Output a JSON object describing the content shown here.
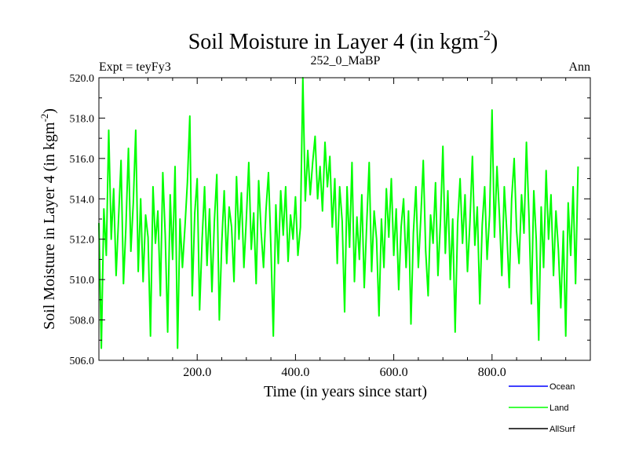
{
  "chart_data": {
    "type": "line",
    "title": "Soil Moisture in Layer 4 (in kgm",
    "title_sup": "-2",
    "title_close": ")",
    "header": {
      "left": "Expt = teyFy3",
      "center": "252_0_MaBP",
      "right": "Ann"
    },
    "ylabel": "Soil Moisture in Layer 4 (in kgm",
    "ylabel_sup": "-2",
    "ylabel_close": ")",
    "xlabel": "Time (in years since start)",
    "xlim": [
      0,
      1000
    ],
    "ylim": [
      506.0,
      520.0
    ],
    "xticks": [
      {
        "value": 200,
        "label": "200.0"
      },
      {
        "value": 400,
        "label": "400.0"
      },
      {
        "value": 600,
        "label": "600.0"
      },
      {
        "value": 800,
        "label": "800.0"
      }
    ],
    "yticks": [
      {
        "value": 506,
        "label": "506.0"
      },
      {
        "value": 508,
        "label": "508.0"
      },
      {
        "value": 510,
        "label": "510.0"
      },
      {
        "value": 512,
        "label": "512.0"
      },
      {
        "value": 514,
        "label": "514.0"
      },
      {
        "value": 516,
        "label": "516.0"
      },
      {
        "value": 518,
        "label": "518.0"
      },
      {
        "value": 520,
        "label": "520.0"
      }
    ],
    "legend": [
      {
        "name": "Ocean",
        "color": "#0000ff"
      },
      {
        "name": "Land",
        "color": "#00ff00"
      },
      {
        "name": "AllSurf",
        "color": "#000000"
      }
    ],
    "series": [
      {
        "name": "Land",
        "color": "#00ff00",
        "x_start": 0,
        "x_step": 5,
        "values": [
          512.8,
          506.6,
          513.5,
          511.2,
          517.4,
          512.0,
          514.5,
          510.2,
          513.0,
          515.9,
          509.8,
          512.6,
          516.5,
          511.4,
          513.8,
          517.4,
          510.4,
          514.0,
          509.9,
          513.2,
          512.1,
          507.2,
          514.6,
          511.8,
          513.4,
          509.2,
          515.3,
          512.2,
          507.4,
          514.2,
          511.0,
          515.6,
          506.6,
          513.0,
          510.6,
          512.6,
          514.8,
          518.1,
          509.2,
          513.3,
          515.0,
          508.5,
          512.0,
          514.6,
          510.7,
          513.5,
          509.4,
          512.9,
          515.2,
          508.0,
          511.8,
          514.4,
          510.8,
          513.6,
          512.6,
          509.9,
          515.1,
          512.0,
          514.3,
          510.6,
          513.0,
          515.8,
          511.5,
          513.3,
          509.8,
          514.9,
          512.4,
          510.6,
          513.4,
          515.3,
          511.6,
          507.2,
          513.7,
          510.8,
          514.4,
          512.2,
          514.6,
          510.9,
          513.2,
          512.0,
          514.1,
          511.2,
          512.6,
          520.2,
          513.9,
          516.4,
          514.2,
          515.8,
          517.1,
          514.0,
          515.6,
          513.4,
          516.8,
          514.6,
          516.1,
          512.6,
          515.0,
          510.8,
          514.6,
          512.9,
          508.4,
          514.6,
          511.6,
          515.8,
          509.9,
          513.1,
          511.0,
          514.2,
          509.6,
          512.8,
          515.8,
          510.4,
          513.4,
          512.0,
          508.2,
          513.0,
          510.6,
          514.5,
          512.1,
          515.0,
          511.2,
          513.5,
          509.5,
          512.6,
          514.0,
          510.6,
          513.4,
          507.8,
          512.3,
          514.6,
          510.6,
          513.0,
          515.9,
          511.4,
          509.2,
          513.2,
          511.8,
          514.8,
          510.2,
          512.9,
          516.6,
          511.3,
          514.4,
          510.0,
          513.0,
          507.4,
          512.8,
          515.0,
          511.8,
          514.2,
          510.4,
          512.8,
          516.1,
          511.7,
          513.6,
          508.8,
          512.7,
          514.6,
          511.0,
          513.2,
          518.4,
          512.1,
          515.6,
          513.2,
          510.2,
          514.6,
          512.4,
          509.6,
          514.0,
          516.0,
          512.4,
          510.8,
          514.2,
          512.3,
          516.8,
          513.2,
          508.8,
          514.4,
          512.0,
          507.0,
          513.6,
          510.6,
          515.4,
          512.0,
          514.2,
          510.2,
          513.4,
          511.5,
          508.6,
          512.4,
          507.2,
          513.8,
          511.2,
          514.6,
          509.8,
          515.6
        ]
      }
    ]
  }
}
